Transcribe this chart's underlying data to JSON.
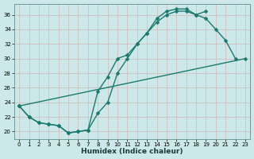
{
  "xlabel": "Humidex (Indice chaleur)",
  "bg_color": "#cce8e8",
  "grid_color": "#c8dada",
  "line_color": "#1a7a6e",
  "hours": [
    0,
    1,
    2,
    3,
    4,
    5,
    6,
    7,
    8,
    9,
    10,
    11,
    12,
    13,
    14,
    15,
    16,
    17,
    18,
    19,
    20,
    21,
    22,
    23
  ],
  "curve_upper": [
    23.5,
    22.0,
    21.2,
    21.0,
    20.8,
    19.8,
    20.0,
    20.2,
    25.5,
    27.5,
    30.0,
    30.5,
    32.0,
    33.5,
    35.5,
    36.5,
    36.8,
    36.8,
    36.0,
    36.5,
    null,
    null,
    null,
    null
  ],
  "curve_lower": [
    23.5,
    22.0,
    21.2,
    21.0,
    20.8,
    19.8,
    20.0,
    20.2,
    22.5,
    24.0,
    28.0,
    30.0,
    32.0,
    33.5,
    35.0,
    36.0,
    36.5,
    36.5,
    36.0,
    35.5,
    34.0,
    32.5,
    30.0,
    null
  ],
  "curve_straight": [
    23.5,
    null,
    null,
    null,
    null,
    null,
    null,
    null,
    null,
    null,
    null,
    null,
    null,
    null,
    null,
    null,
    null,
    null,
    null,
    null,
    null,
    null,
    null,
    30.0
  ],
  "xlim": [
    -0.5,
    23.5
  ],
  "ylim": [
    19.0,
    37.5
  ],
  "yticks": [
    20,
    22,
    24,
    26,
    28,
    30,
    32,
    34,
    36
  ],
  "xticks": [
    0,
    1,
    2,
    3,
    4,
    5,
    6,
    7,
    8,
    9,
    10,
    11,
    12,
    13,
    14,
    15,
    16,
    17,
    18,
    19,
    20,
    21,
    22,
    23
  ]
}
